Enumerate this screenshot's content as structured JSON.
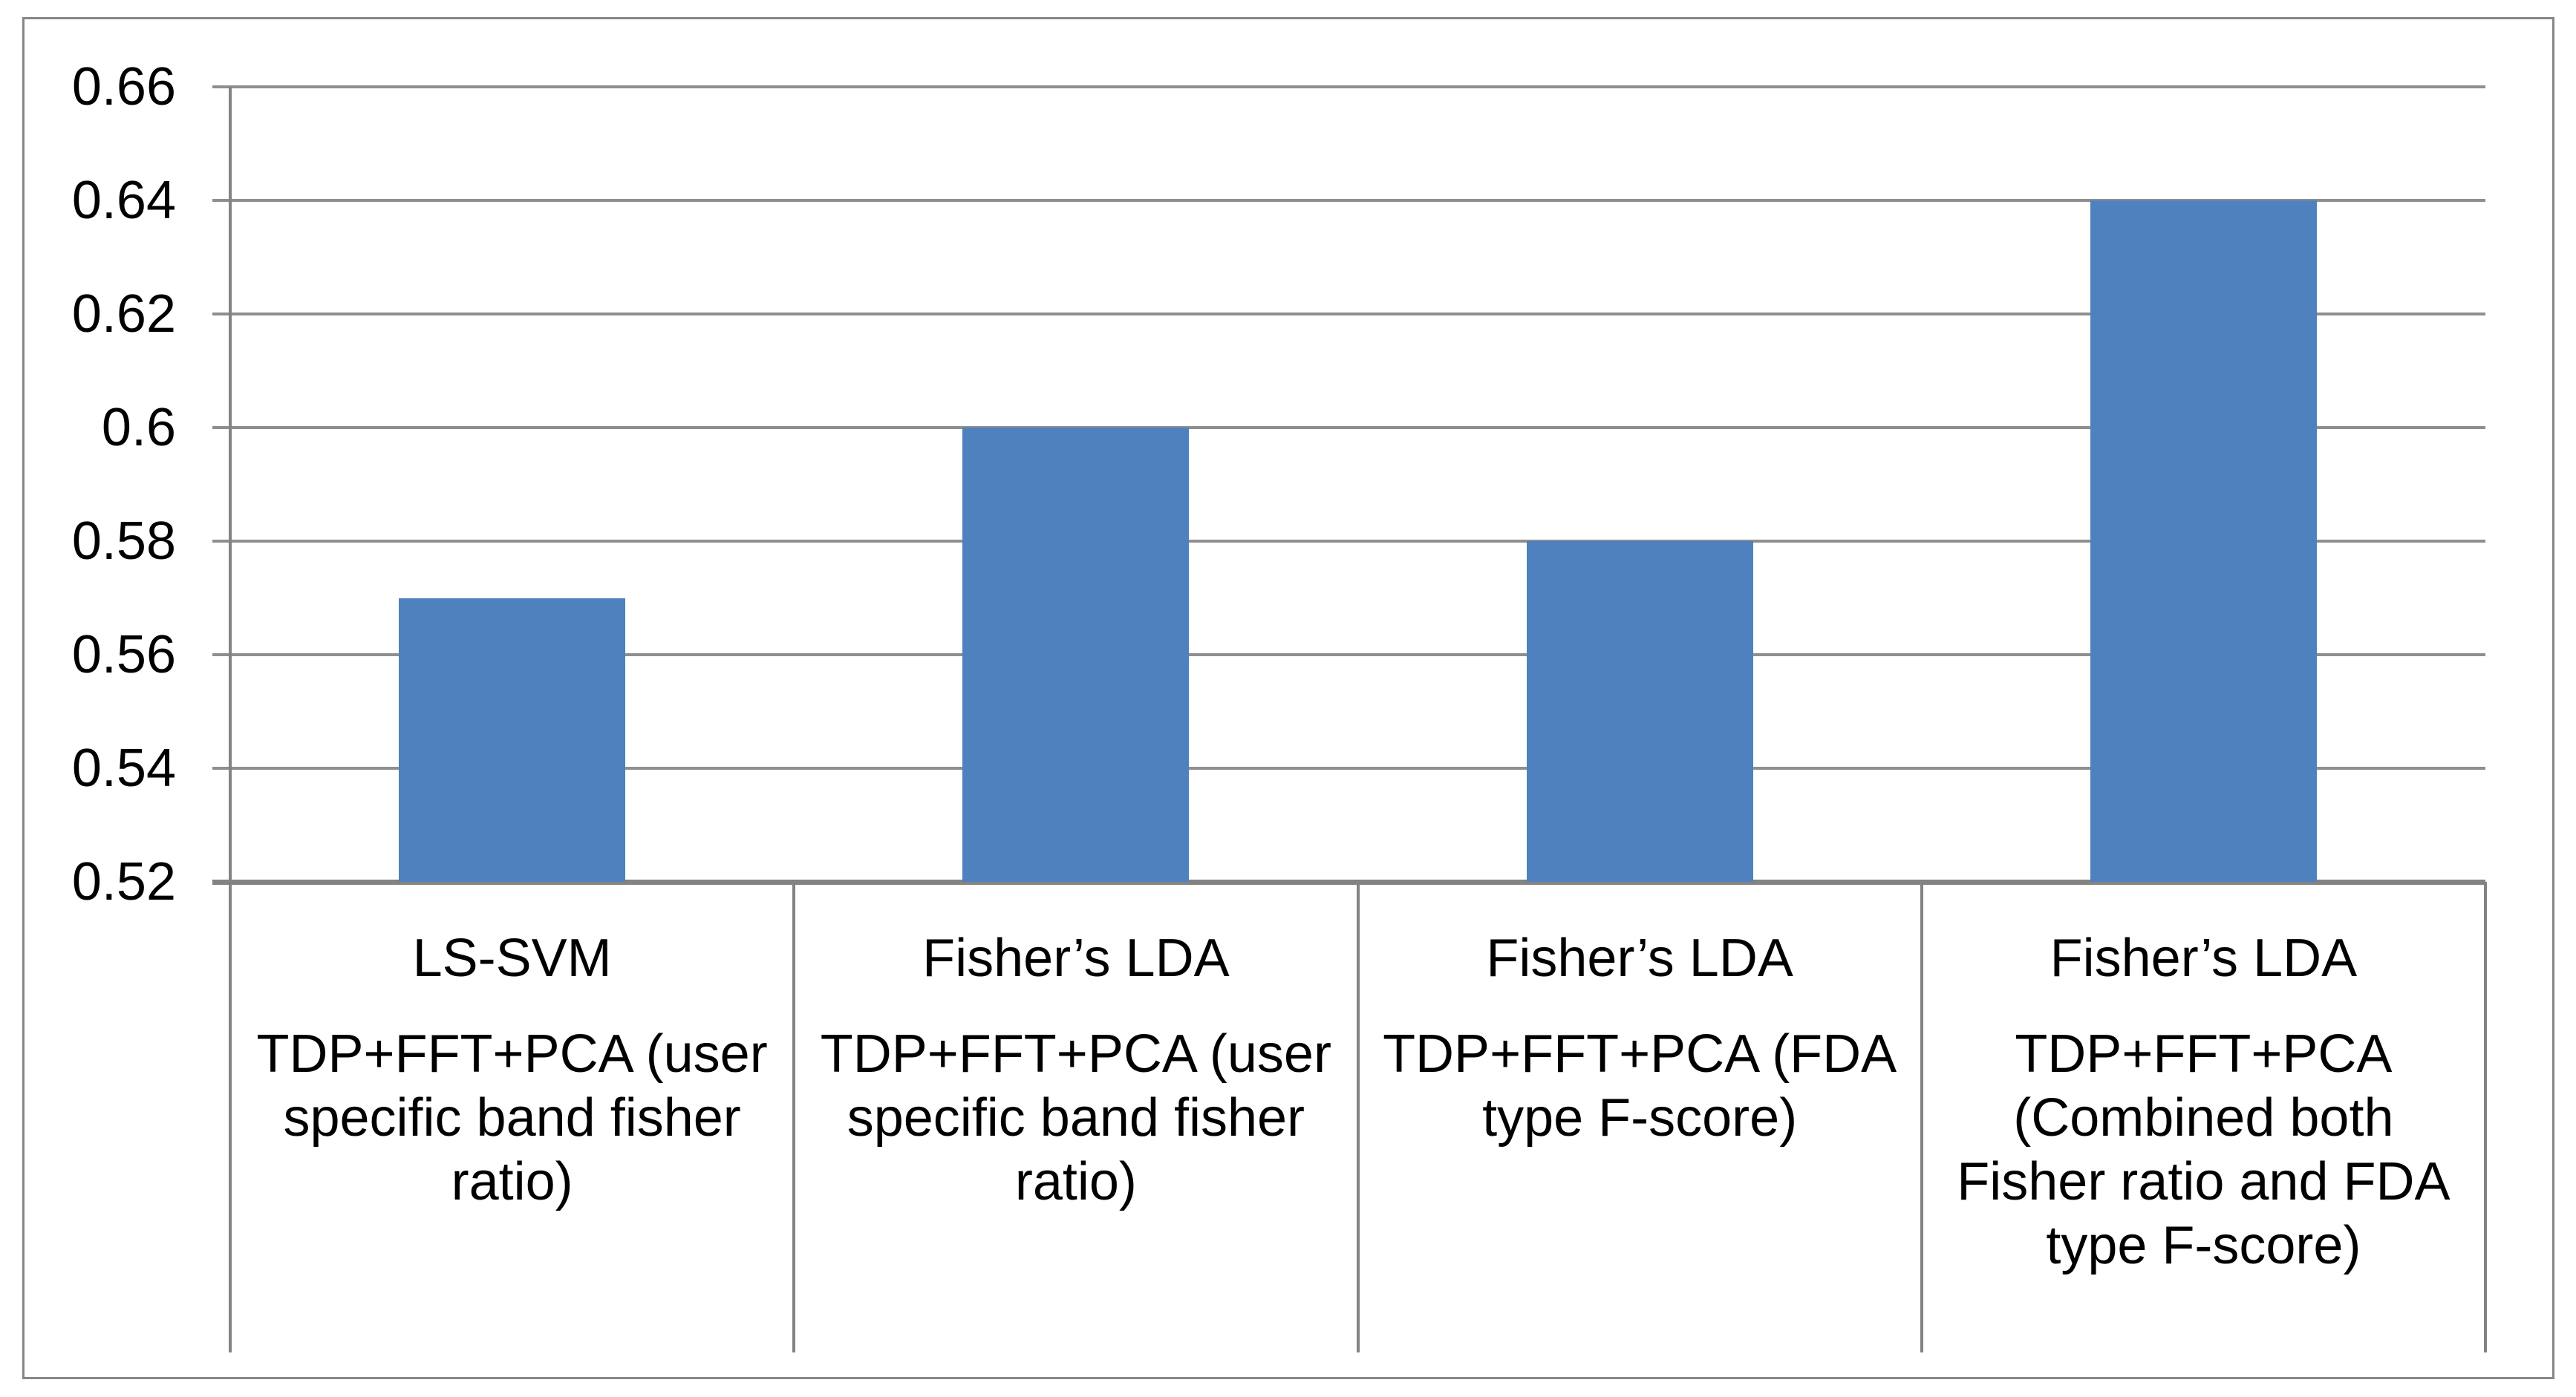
{
  "chart_data": {
    "type": "bar",
    "title": "",
    "categories": [
      {
        "classifier": "LS-SVM",
        "feature": "TDP+FFT+PCA (user\nspecific band fisher\nratio)"
      },
      {
        "classifier": "Fisher’s LDA",
        "feature": "TDP+FFT+PCA (user\nspecific band fisher\nratio)"
      },
      {
        "classifier": "Fisher’s LDA",
        "feature": "TDP+FFT+PCA (FDA\ntype F-score)"
      },
      {
        "classifier": "Fisher’s LDA",
        "feature": "TDP+FFT+PCA\n(Combined both\nFisher ratio and FDA\ntype F-score)"
      }
    ],
    "values": [
      0.57,
      0.6,
      0.58,
      0.64
    ],
    "yticks": [
      "0.66",
      "0.64",
      "0.62",
      "0.6",
      "0.58",
      "0.56",
      "0.54",
      "0.52"
    ],
    "ylim": [
      0.52,
      0.66
    ],
    "ytick_step": 0.02,
    "xlabel": "",
    "ylabel": "",
    "grid": true,
    "legend": false,
    "bar_color": "#4e81bd",
    "gridline_color": "#8f8f8f",
    "axis_color": "#838383",
    "frame_color": "#878787",
    "text_color": "#000000"
  }
}
